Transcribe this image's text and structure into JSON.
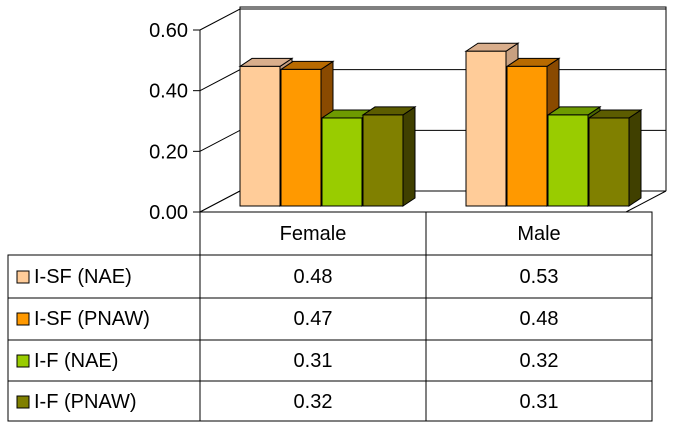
{
  "chart_data": {
    "type": "bar",
    "categories": [
      "Female",
      "Male"
    ],
    "series": [
      {
        "name": "I-SF (NAE)",
        "values": [
          0.48,
          0.53
        ],
        "color": "#FFCC99",
        "side": "#C8A080",
        "top": "#D9AE8C"
      },
      {
        "name": "I-SF (PNAW)",
        "values": [
          0.47,
          0.48
        ],
        "color": "#FF9900",
        "side": "#8A4A00",
        "top": "#B86A00"
      },
      {
        "name": "I-F (NAE)",
        "values": [
          0.31,
          0.32
        ],
        "color": "#99CC00",
        "side": "#4A6600",
        "top": "#6E9A00"
      },
      {
        "name": "I-F (PNAW)",
        "values": [
          0.32,
          0.31
        ],
        "color": "#808000",
        "side": "#404000",
        "top": "#5C5C00"
      }
    ],
    "y_ticks": [
      "0.00",
      "0.20",
      "0.40",
      "0.60"
    ],
    "ylim": [
      0,
      0.6
    ],
    "data_table": {
      "rows": [
        [
          "0.48",
          "0.53"
        ],
        [
          "0.47",
          "0.48"
        ],
        [
          "0.31",
          "0.32"
        ],
        [
          "0.32",
          "0.31"
        ]
      ]
    }
  }
}
